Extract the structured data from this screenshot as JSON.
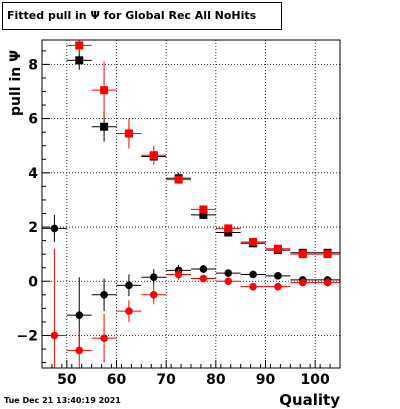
{
  "title": "Fitted pull in  Ψ  for Global Rec All NoHits",
  "timestamp": "Tue Dec 21 13:40:19 2021",
  "colors": {
    "series_black": "#000000",
    "series_red": "#ff0000",
    "frame": "#000000",
    "grid": "#000000"
  },
  "chart_data": {
    "type": "scatter",
    "title": "Fitted pull in  Ψ  for Global Rec All NoHits",
    "xlabel": "Quality",
    "ylabel": "pull in  Ψ",
    "xlim": [
      45,
      105
    ],
    "ylim": [
      -3.2,
      8.9
    ],
    "xticks": [
      50,
      60,
      70,
      80,
      90,
      100
    ],
    "yticks": [
      -2,
      0,
      2,
      4,
      6,
      8
    ],
    "grid": true,
    "x_halfwidth": 2.5,
    "series": [
      {
        "marker": "square",
        "color": "#000000",
        "x": [
          52.5,
          57.5,
          62.5,
          67.5,
          72.5,
          77.5,
          82.5,
          87.5,
          92.5,
          97.5,
          102.5
        ],
        "y": [
          8.15,
          5.7,
          5.45,
          4.6,
          3.8,
          2.45,
          1.8,
          1.4,
          1.15,
          1.05,
          1.05
        ],
        "err": [
          0.35,
          0.55,
          0.2,
          0.15,
          0.2,
          0.15,
          0.1,
          0.1,
          0.05,
          0.05,
          0.05
        ]
      },
      {
        "marker": "square",
        "color": "#ff0000",
        "x": [
          52.5,
          57.5,
          62.5,
          67.5,
          72.5,
          77.5,
          82.5,
          87.5,
          92.5,
          97.5,
          102.5
        ],
        "y": [
          8.7,
          7.05,
          5.45,
          4.65,
          3.75,
          2.65,
          1.95,
          1.45,
          1.2,
          1.0,
          1.0
        ],
        "err": [
          0.3,
          1.05,
          0.55,
          0.35,
          0.15,
          0.15,
          0.1,
          0.1,
          0.05,
          0.05,
          0.05
        ]
      },
      {
        "marker": "circle",
        "color": "#000000",
        "x": [
          47.5,
          52.5,
          57.5,
          62.5,
          67.5,
          72.5,
          77.5,
          82.5,
          87.5,
          92.5,
          97.5,
          102.5
        ],
        "y": [
          1.95,
          -1.25,
          -0.5,
          -0.15,
          0.15,
          0.4,
          0.45,
          0.3,
          0.25,
          0.2,
          0.05,
          0.05
        ],
        "err": [
          0.5,
          1.4,
          0.6,
          0.4,
          0.3,
          0.2,
          0.15,
          0.1,
          0.1,
          0.05,
          0.05,
          0.05
        ]
      },
      {
        "marker": "circle",
        "color": "#ff0000",
        "x": [
          47.5,
          52.5,
          57.5,
          62.5,
          67.5,
          72.5,
          77.5,
          82.5,
          87.5,
          92.5,
          97.5,
          102.5
        ],
        "y": [
          -2.0,
          -2.55,
          -2.1,
          -1.1,
          -0.5,
          0.25,
          0.1,
          0.0,
          -0.2,
          -0.2,
          -0.05,
          -0.05
        ],
        "err": [
          3.2,
          0.7,
          0.9,
          0.4,
          0.35,
          0.2,
          0.1,
          0.1,
          0.1,
          0.1,
          0.05,
          0.05
        ]
      }
    ]
  }
}
